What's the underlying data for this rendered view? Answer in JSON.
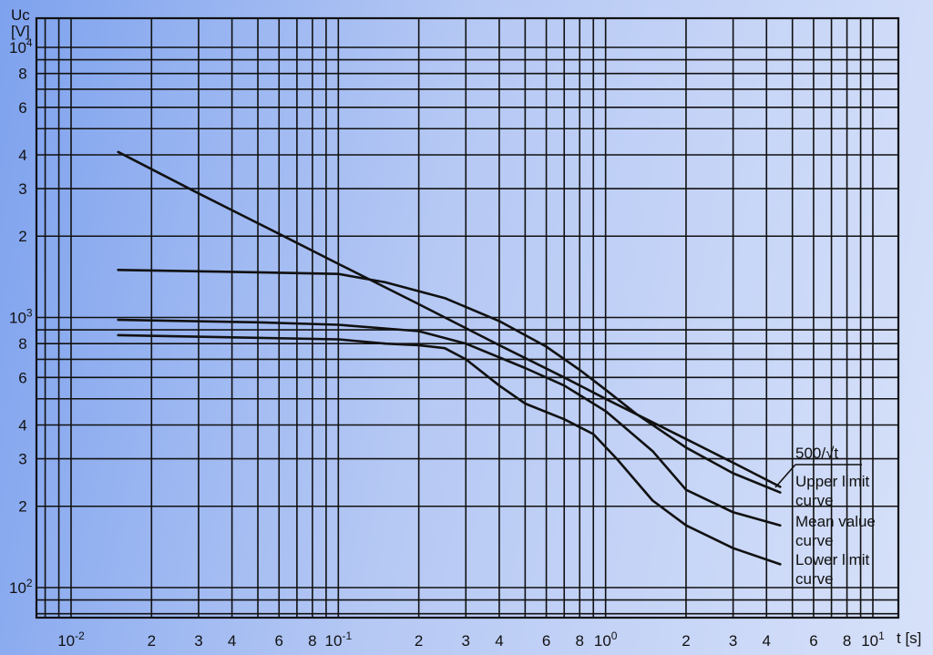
{
  "chart_data": {
    "type": "line",
    "title": "",
    "xlabel": "t [s]",
    "ylabel_line1": "Uc",
    "ylabel_line2": "[V]",
    "xscale": "log",
    "yscale": "log",
    "xlim": [
      0.006,
      15
    ],
    "ylim": [
      70,
      11000
    ],
    "grid": true,
    "x_tick_labels": [
      {
        "v": 0.01,
        "base": "10",
        "exp": "-2"
      },
      {
        "v": 0.02,
        "text": "2"
      },
      {
        "v": 0.03,
        "text": "3"
      },
      {
        "v": 0.04,
        "text": "4"
      },
      {
        "v": 0.06,
        "text": "6"
      },
      {
        "v": 0.08,
        "text": "8"
      },
      {
        "v": 0.1,
        "base": "10",
        "exp": "-1"
      },
      {
        "v": 0.2,
        "text": "2"
      },
      {
        "v": 0.3,
        "text": "3"
      },
      {
        "v": 0.4,
        "text": "4"
      },
      {
        "v": 0.6,
        "text": "6"
      },
      {
        "v": 0.8,
        "text": "8"
      },
      {
        "v": 1,
        "base": "10",
        "exp": "0"
      },
      {
        "v": 2,
        "text": "2"
      },
      {
        "v": 3,
        "text": "3"
      },
      {
        "v": 4,
        "text": "4"
      },
      {
        "v": 6,
        "text": "6"
      },
      {
        "v": 8,
        "text": "8"
      },
      {
        "v": 10,
        "base": "10",
        "exp": "1"
      }
    ],
    "y_tick_labels": [
      {
        "v": 10000,
        "base": "10",
        "exp": "4"
      },
      {
        "v": 8000,
        "text": "8"
      },
      {
        "v": 6000,
        "text": "6"
      },
      {
        "v": 4000,
        "text": "4"
      },
      {
        "v": 3000,
        "text": "3"
      },
      {
        "v": 2000,
        "text": "2"
      },
      {
        "v": 1000,
        "base": "10",
        "exp": "3"
      },
      {
        "v": 800,
        "text": "8"
      },
      {
        "v": 600,
        "text": "6"
      },
      {
        "v": 400,
        "text": "4"
      },
      {
        "v": 300,
        "text": "3"
      },
      {
        "v": 200,
        "text": "2"
      },
      {
        "v": 100,
        "base": "10",
        "exp": "2"
      }
    ],
    "series": [
      {
        "label_lines": [
          "500/√t"
        ],
        "x": [
          0.015,
          0.03,
          0.06,
          0.1,
          0.2,
          0.4,
          0.7,
          1,
          2,
          3,
          4.5
        ],
        "y": [
          4100,
          2880,
          2040,
          1580,
          1120,
          790,
          600,
          500,
          355,
          290,
          236
        ]
      },
      {
        "label_lines": [
          "Upper limit",
          "curve"
        ],
        "x": [
          0.015,
          0.05,
          0.1,
          0.15,
          0.25,
          0.4,
          0.6,
          0.8,
          1,
          1.3,
          2,
          3,
          4.5
        ],
        "y": [
          1500,
          1470,
          1450,
          1350,
          1180,
          970,
          780,
          640,
          540,
          440,
          330,
          265,
          225
        ]
      },
      {
        "label_lines": [
          "Mean value",
          "curve"
        ],
        "x": [
          0.015,
          0.05,
          0.1,
          0.2,
          0.3,
          0.5,
          0.7,
          1,
          1.5,
          2,
          3,
          4.5
        ],
        "y": [
          980,
          960,
          940,
          890,
          800,
          650,
          560,
          450,
          320,
          230,
          190,
          170
        ]
      },
      {
        "label_lines": [
          "Lower limit",
          "curve"
        ],
        "x": [
          0.015,
          0.1,
          0.15,
          0.2,
          0.25,
          0.3,
          0.4,
          0.5,
          0.7,
          0.9,
          1.1,
          1.5,
          2,
          3,
          4.5
        ],
        "y": [
          860,
          830,
          800,
          790,
          770,
          700,
          560,
          480,
          420,
          370,
          300,
          210,
          170,
          140,
          122
        ]
      }
    ]
  }
}
